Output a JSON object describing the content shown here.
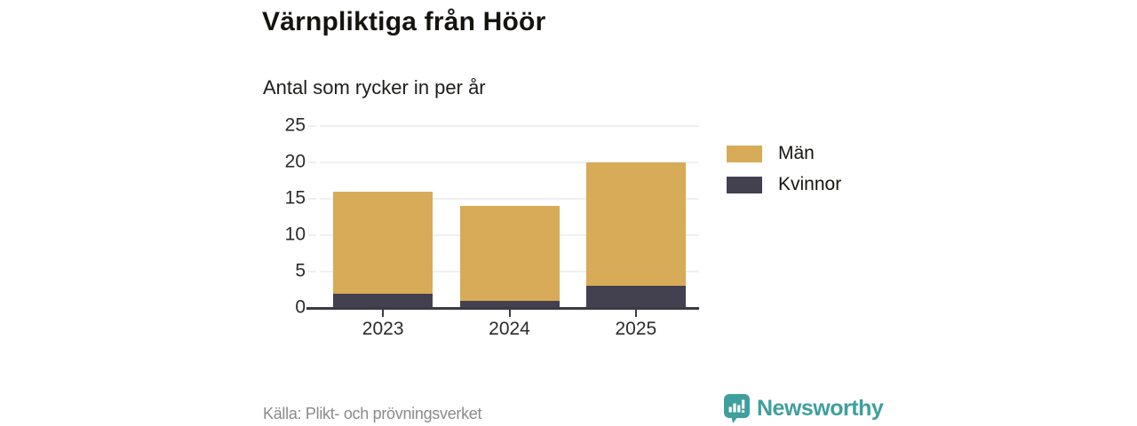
{
  "header": {
    "title": "Värnpliktiga från Höör",
    "subtitle": "Antal som rycker in per år"
  },
  "chart_data": {
    "type": "bar",
    "stacked": true,
    "title": "Värnpliktiga från Höör",
    "subtitle": "Antal som rycker in per år",
    "categories": [
      "2023",
      "2024",
      "2025"
    ],
    "series": [
      {
        "name": "Män",
        "color": "#d8ab58",
        "values": [
          14,
          13,
          17
        ]
      },
      {
        "name": "Kvinnor",
        "color": "#434050",
        "values": [
          2,
          1,
          3
        ]
      }
    ],
    "stack_order_bottom_to_top": [
      "Kvinnor",
      "Män"
    ],
    "totals": [
      16,
      14,
      20
    ],
    "ylim": [
      0,
      25
    ],
    "yticks": [
      0,
      5,
      10,
      15,
      20,
      25
    ],
    "grid": true,
    "gridline_color": "#e2e2e2",
    "axis_color": "#3b3945",
    "legend_position": "right"
  },
  "footer": {
    "source": "Källa: Plikt- och prövningsverket",
    "brand": "Newsworthy",
    "brand_color": "#3f9f9d"
  }
}
